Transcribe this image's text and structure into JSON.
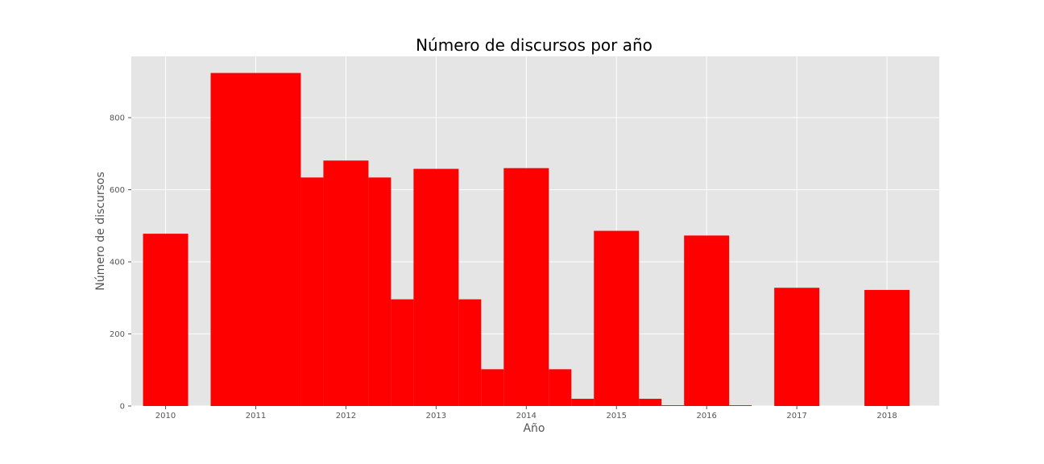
{
  "chart_data": {
    "type": "bar",
    "title": "Número de discursos por año",
    "xlabel": "Año",
    "ylabel": "Número de discursos",
    "xlim": [
      2009.62,
      2018.58
    ],
    "ylim": [
      0,
      970
    ],
    "xticks": [
      2010,
      2011,
      2012,
      2013,
      2014,
      2015,
      2016,
      2017,
      2018
    ],
    "yticks": [
      0,
      200,
      400,
      600,
      800
    ],
    "grid": true,
    "background_color": "#e5e5e5",
    "bar_color": "#ff0000",
    "bars": [
      {
        "x_start": 2009.75,
        "x_end": 2010.25,
        "value": 478
      },
      {
        "x_start": 2010.5,
        "x_end": 2011.5,
        "value": 924
      },
      {
        "x_start": 2011.5,
        "x_end": 2011.75,
        "value": 634
      },
      {
        "x_start": 2011.75,
        "x_end": 2012.25,
        "value": 681
      },
      {
        "x_start": 2012.25,
        "x_end": 2012.5,
        "value": 634
      },
      {
        "x_start": 2012.5,
        "x_end": 2012.75,
        "value": 296
      },
      {
        "x_start": 2012.75,
        "x_end": 2013.25,
        "value": 658
      },
      {
        "x_start": 2013.25,
        "x_end": 2013.5,
        "value": 296
      },
      {
        "x_start": 2013.5,
        "x_end": 2013.75,
        "value": 102
      },
      {
        "x_start": 2013.75,
        "x_end": 2014.25,
        "value": 660
      },
      {
        "x_start": 2014.25,
        "x_end": 2014.5,
        "value": 102
      },
      {
        "x_start": 2014.5,
        "x_end": 2014.75,
        "value": 20
      },
      {
        "x_start": 2014.75,
        "x_end": 2015.25,
        "value": 486
      },
      {
        "x_start": 2015.25,
        "x_end": 2015.5,
        "value": 20
      },
      {
        "x_start": 2015.5,
        "x_end": 2015.75,
        "value": 2
      },
      {
        "x_start": 2015.75,
        "x_end": 2016.25,
        "value": 473
      },
      {
        "x_start": 2016.25,
        "x_end": 2016.5,
        "value": 2
      },
      {
        "x_start": 2016.75,
        "x_end": 2017.25,
        "value": 328
      },
      {
        "x_start": 2017.75,
        "x_end": 2018.25,
        "value": 322
      }
    ]
  }
}
